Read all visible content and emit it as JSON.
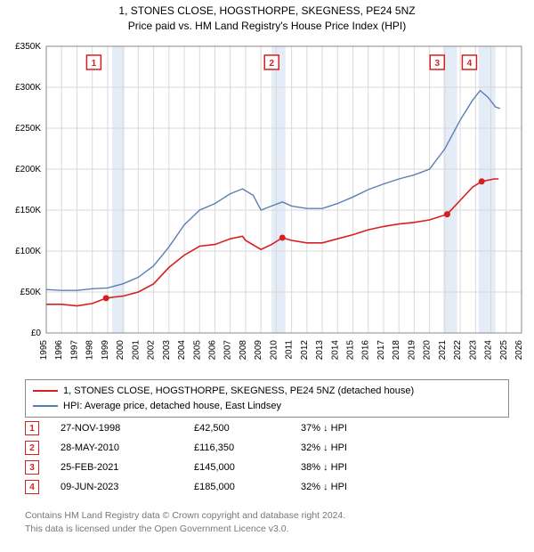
{
  "title_line1": "1, STONES CLOSE, HOGSTHORPE, SKEGNESS, PE24 5NZ",
  "title_line2": "Price paid vs. HM Land Registry's House Price Index (HPI)",
  "chart": {
    "type": "line",
    "background_color": "#ffffff",
    "plot_bg_color": "#ffffff",
    "grid_color": "#d9d9d9",
    "axis_color": "#888888",
    "band_color": "#e4ecf7",
    "tick_fontsize": 10,
    "x_years": [
      1995,
      1996,
      1997,
      1998,
      1999,
      2000,
      2001,
      2002,
      2003,
      2004,
      2005,
      2006,
      2007,
      2008,
      2009,
      2010,
      2011,
      2012,
      2013,
      2014,
      2015,
      2016,
      2017,
      2018,
      2019,
      2020,
      2021,
      2022,
      2023,
      2024,
      2025,
      2026
    ],
    "x_range": [
      1995,
      2026
    ],
    "y_range": [
      0,
      350000
    ],
    "y_ticks": [
      0,
      50000,
      100000,
      150000,
      200000,
      250000,
      300000,
      350000
    ],
    "y_tick_labels": [
      "£0",
      "£50K",
      "£100K",
      "£150K",
      "£200K",
      "£250K",
      "£300K",
      "£350K"
    ],
    "bands": [
      {
        "start": 1999.3,
        "end": 2000.1
      },
      {
        "start": 2009.7,
        "end": 2010.6
      },
      {
        "start": 2020.9,
        "end": 2021.8
      },
      {
        "start": 2023.2,
        "end": 2024.3
      }
    ],
    "markers": [
      {
        "n": 1,
        "year": 1998.1,
        "color": "#d6201f"
      },
      {
        "n": 2,
        "year": 2009.7,
        "color": "#d6201f"
      },
      {
        "n": 3,
        "year": 2020.5,
        "color": "#d6201f"
      },
      {
        "n": 4,
        "year": 2022.6,
        "color": "#d6201f"
      }
    ],
    "series_property": {
      "color": "#d6201f",
      "width": 1.6,
      "points": [
        [
          1995.0,
          35000
        ],
        [
          1996.0,
          35000
        ],
        [
          1997.0,
          33000
        ],
        [
          1998.0,
          36000
        ],
        [
          1998.9,
          42500
        ],
        [
          1999.5,
          44000
        ],
        [
          2000.0,
          45000
        ],
        [
          2001.0,
          50000
        ],
        [
          2002.0,
          60000
        ],
        [
          2003.0,
          80000
        ],
        [
          2004.0,
          95000
        ],
        [
          2005.0,
          106000
        ],
        [
          2006.0,
          108000
        ],
        [
          2007.0,
          115000
        ],
        [
          2007.8,
          118000
        ],
        [
          2008.0,
          113000
        ],
        [
          2009.0,
          102000
        ],
        [
          2009.7,
          108000
        ],
        [
          2010.4,
          116350
        ],
        [
          2011.0,
          113000
        ],
        [
          2012.0,
          110000
        ],
        [
          2013.0,
          110000
        ],
        [
          2014.0,
          115000
        ],
        [
          2015.0,
          120000
        ],
        [
          2016.0,
          126000
        ],
        [
          2017.0,
          130000
        ],
        [
          2018.0,
          133000
        ],
        [
          2019.0,
          135000
        ],
        [
          2020.0,
          138000
        ],
        [
          2021.15,
          145000
        ],
        [
          2022.0,
          162000
        ],
        [
          2022.8,
          178000
        ],
        [
          2023.4,
          185000
        ],
        [
          2024.2,
          188000
        ],
        [
          2024.5,
          188000
        ]
      ],
      "sale_dots": [
        [
          1998.9,
          42500
        ],
        [
          2010.4,
          116350
        ],
        [
          2021.15,
          145000
        ],
        [
          2023.4,
          185000
        ]
      ]
    },
    "series_hpi": {
      "color": "#5b7fb3",
      "width": 1.4,
      "points": [
        [
          1995.0,
          53000
        ],
        [
          1996.0,
          52000
        ],
        [
          1997.0,
          52000
        ],
        [
          1998.0,
          54000
        ],
        [
          1999.0,
          55000
        ],
        [
          2000.0,
          60000
        ],
        [
          2001.0,
          68000
        ],
        [
          2002.0,
          82000
        ],
        [
          2003.0,
          105000
        ],
        [
          2004.0,
          132000
        ],
        [
          2005.0,
          150000
        ],
        [
          2006.0,
          158000
        ],
        [
          2007.0,
          170000
        ],
        [
          2007.8,
          176000
        ],
        [
          2008.5,
          168000
        ],
        [
          2009.0,
          150000
        ],
        [
          2009.7,
          155000
        ],
        [
          2010.4,
          160000
        ],
        [
          2011.0,
          155000
        ],
        [
          2012.0,
          152000
        ],
        [
          2013.0,
          152000
        ],
        [
          2014.0,
          158000
        ],
        [
          2015.0,
          166000
        ],
        [
          2016.0,
          175000
        ],
        [
          2017.0,
          182000
        ],
        [
          2018.0,
          188000
        ],
        [
          2019.0,
          193000
        ],
        [
          2020.0,
          200000
        ],
        [
          2021.0,
          225000
        ],
        [
          2022.0,
          260000
        ],
        [
          2022.8,
          284000
        ],
        [
          2023.3,
          296000
        ],
        [
          2023.8,
          288000
        ],
        [
          2024.3,
          276000
        ],
        [
          2024.6,
          274000
        ]
      ]
    }
  },
  "legend": {
    "row1": {
      "color": "#d6201f",
      "label": "1, STONES CLOSE, HOGSTHORPE, SKEGNESS, PE24 5NZ (detached house)"
    },
    "row2": {
      "color": "#5b7fb3",
      "label": "HPI: Average price, detached house, East Lindsey"
    }
  },
  "sales": [
    {
      "n": "1",
      "date": "27-NOV-1998",
      "price": "£42,500",
      "pct": "37% ↓ HPI",
      "color": "#d6201f"
    },
    {
      "n": "2",
      "date": "28-MAY-2010",
      "price": "£116,350",
      "pct": "32% ↓ HPI",
      "color": "#d6201f"
    },
    {
      "n": "3",
      "date": "25-FEB-2021",
      "price": "£145,000",
      "pct": "38% ↓ HPI",
      "color": "#d6201f"
    },
    {
      "n": "4",
      "date": "09-JUN-2023",
      "price": "£185,000",
      "pct": "32% ↓ HPI",
      "color": "#d6201f"
    }
  ],
  "footer_line1": "Contains HM Land Registry data © Crown copyright and database right 2024.",
  "footer_line2": "This data is licensed under the Open Government Licence v3.0."
}
